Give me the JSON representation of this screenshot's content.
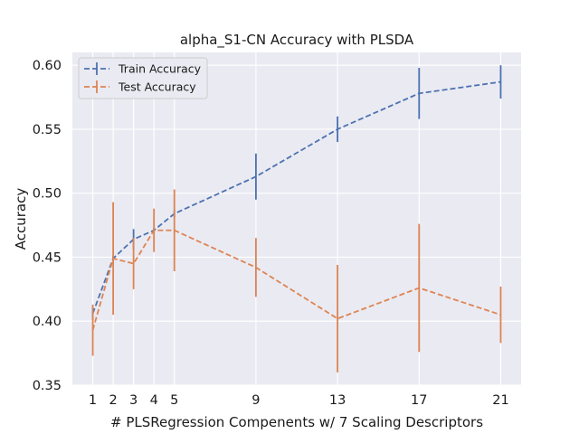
{
  "chart_data": {
    "type": "line",
    "title": "alpha_S1-CN Accuracy with PLSDA",
    "xlabel": "# PLSRegression Compenents w/ 7 Scaling Descriptors",
    "ylabel": "Accuracy",
    "x": [
      1,
      2,
      3,
      4,
      5,
      9,
      13,
      17,
      21
    ],
    "xticks": [
      1,
      2,
      3,
      4,
      5,
      9,
      13,
      17,
      21
    ],
    "yticks": [
      0.35,
      0.4,
      0.45,
      0.5,
      0.55,
      0.6
    ],
    "ytick_labels": [
      "0.35",
      "0.40",
      "0.45",
      "0.50",
      "0.55",
      "0.60"
    ],
    "xlim": [
      0,
      22
    ],
    "ylim": [
      0.35,
      0.61
    ],
    "grid": true,
    "legend_position": "top-left",
    "series": [
      {
        "name": "Train Accuracy",
        "color": "#4c72b0",
        "values": [
          0.406,
          0.449,
          0.464,
          0.471,
          0.484,
          0.513,
          0.55,
          0.578,
          0.587
        ],
        "errors": [
          0.005,
          0.002,
          0.008,
          0.002,
          0.003,
          0.018,
          0.01,
          0.02,
          0.013
        ]
      },
      {
        "name": "Test Accuracy",
        "color": "#dd8452",
        "values": [
          0.393,
          0.449,
          0.445,
          0.471,
          0.471,
          0.442,
          0.402,
          0.426,
          0.405
        ],
        "errors": [
          0.02,
          0.044,
          0.02,
          0.017,
          0.032,
          0.023,
          0.042,
          0.05,
          0.022
        ]
      }
    ]
  }
}
